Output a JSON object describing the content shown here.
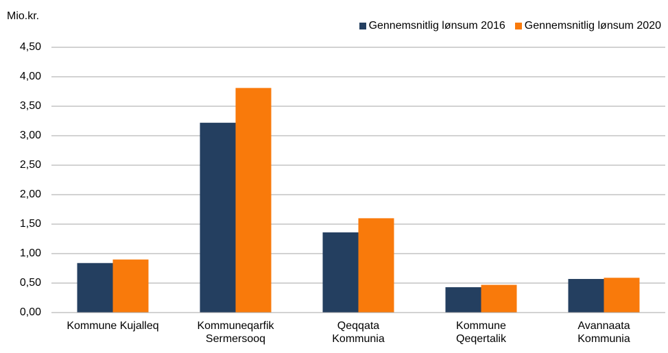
{
  "chart_data": {
    "type": "bar",
    "y_label": "Mio.kr.",
    "categories": [
      "Kommune Kujalleq",
      "Kommuneqarfik\nSermersooq",
      "Qeqqata\nKommunia",
      "Kommune\nQeqertalik",
      "Avannaata\nKommunia"
    ],
    "series": [
      {
        "name": "Gennemsnitlig lønsum 2016",
        "color": "#243f60",
        "values": [
          0.84,
          3.22,
          1.36,
          0.43,
          0.57
        ]
      },
      {
        "name": "Gennemsnitlig lønsum 2020",
        "color": "#f97a0b",
        "values": [
          0.9,
          3.81,
          1.6,
          0.47,
          0.59
        ]
      }
    ],
    "ylim": [
      0,
      4.5
    ],
    "yticks": [
      {
        "value": 0,
        "label": "0,00"
      },
      {
        "value": 0.5,
        "label": "0,50"
      },
      {
        "value": 1,
        "label": "1,00"
      },
      {
        "value": 1.5,
        "label": "1,50"
      },
      {
        "value": 2,
        "label": "2,00"
      },
      {
        "value": 2.5,
        "label": "2,50"
      },
      {
        "value": 3,
        "label": "3,00"
      },
      {
        "value": 3.5,
        "label": "3,50"
      },
      {
        "value": 4,
        "label": "4,00"
      },
      {
        "value": 4.5,
        "label": "4,50"
      }
    ],
    "grid": true,
    "legend": "top"
  }
}
